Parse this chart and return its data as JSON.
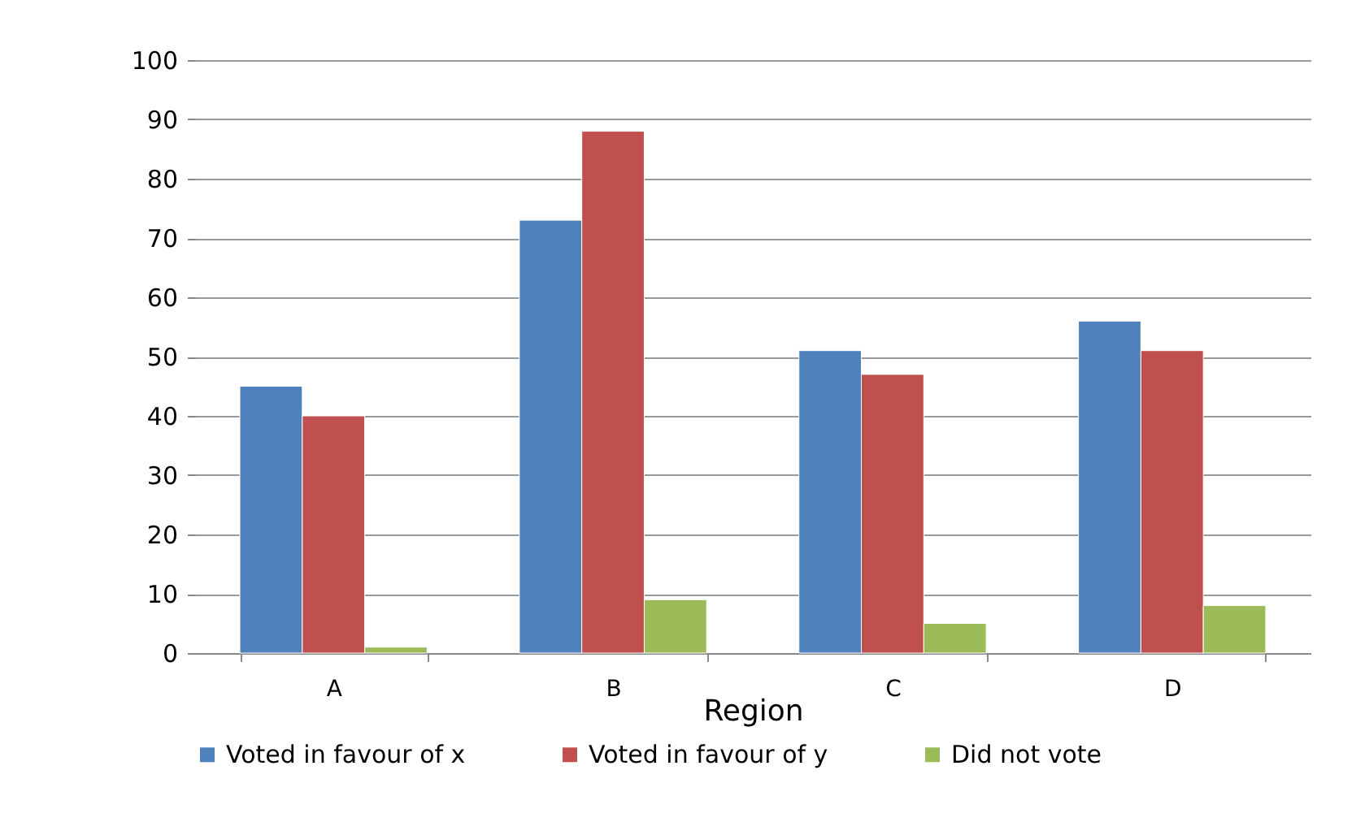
{
  "chart_data": {
    "type": "bar",
    "xlabel": "Region",
    "categories": [
      "A",
      "B",
      "C",
      "D"
    ],
    "series": [
      {
        "name": "Voted in favour of x",
        "color": "#4f81bd",
        "values": [
          45,
          73,
          51,
          56
        ]
      },
      {
        "name": "Voted in favour of y",
        "color": "#c0504d",
        "values": [
          40,
          88,
          47,
          51
        ]
      },
      {
        "name": "Did not vote",
        "color": "#9bbb59",
        "values": [
          1,
          9,
          5,
          8
        ]
      }
    ],
    "ylim": [
      0,
      100
    ],
    "yticks": [
      0,
      10,
      20,
      30,
      40,
      50,
      60,
      70,
      80,
      90,
      100
    ],
    "grid": "y",
    "legend": "bottom"
  }
}
